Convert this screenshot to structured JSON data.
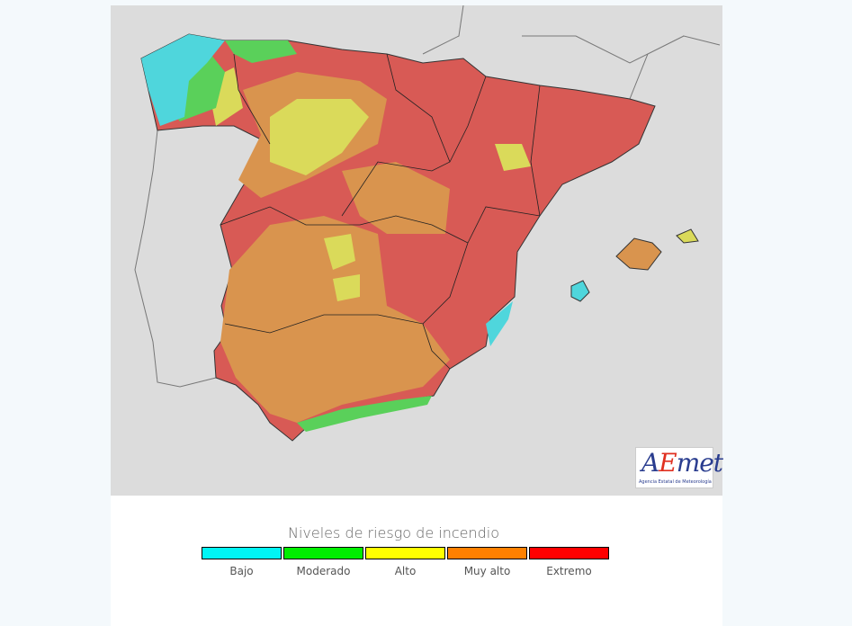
{
  "map": {
    "logo_text": "AEmet",
    "logo_subtitle": "Agencia Estatal de Meteorología"
  },
  "legend": {
    "title": "Niveles de riesgo de incendio",
    "items": [
      {
        "label": "Bajo",
        "color": "#00f5f5"
      },
      {
        "label": "Moderado",
        "color": "#00ee00"
      },
      {
        "label": "Alto",
        "color": "#ffff00"
      },
      {
        "label": "Muy alto",
        "color": "#ff8000"
      },
      {
        "label": "Extremo",
        "color": "#ff0000"
      }
    ]
  }
}
